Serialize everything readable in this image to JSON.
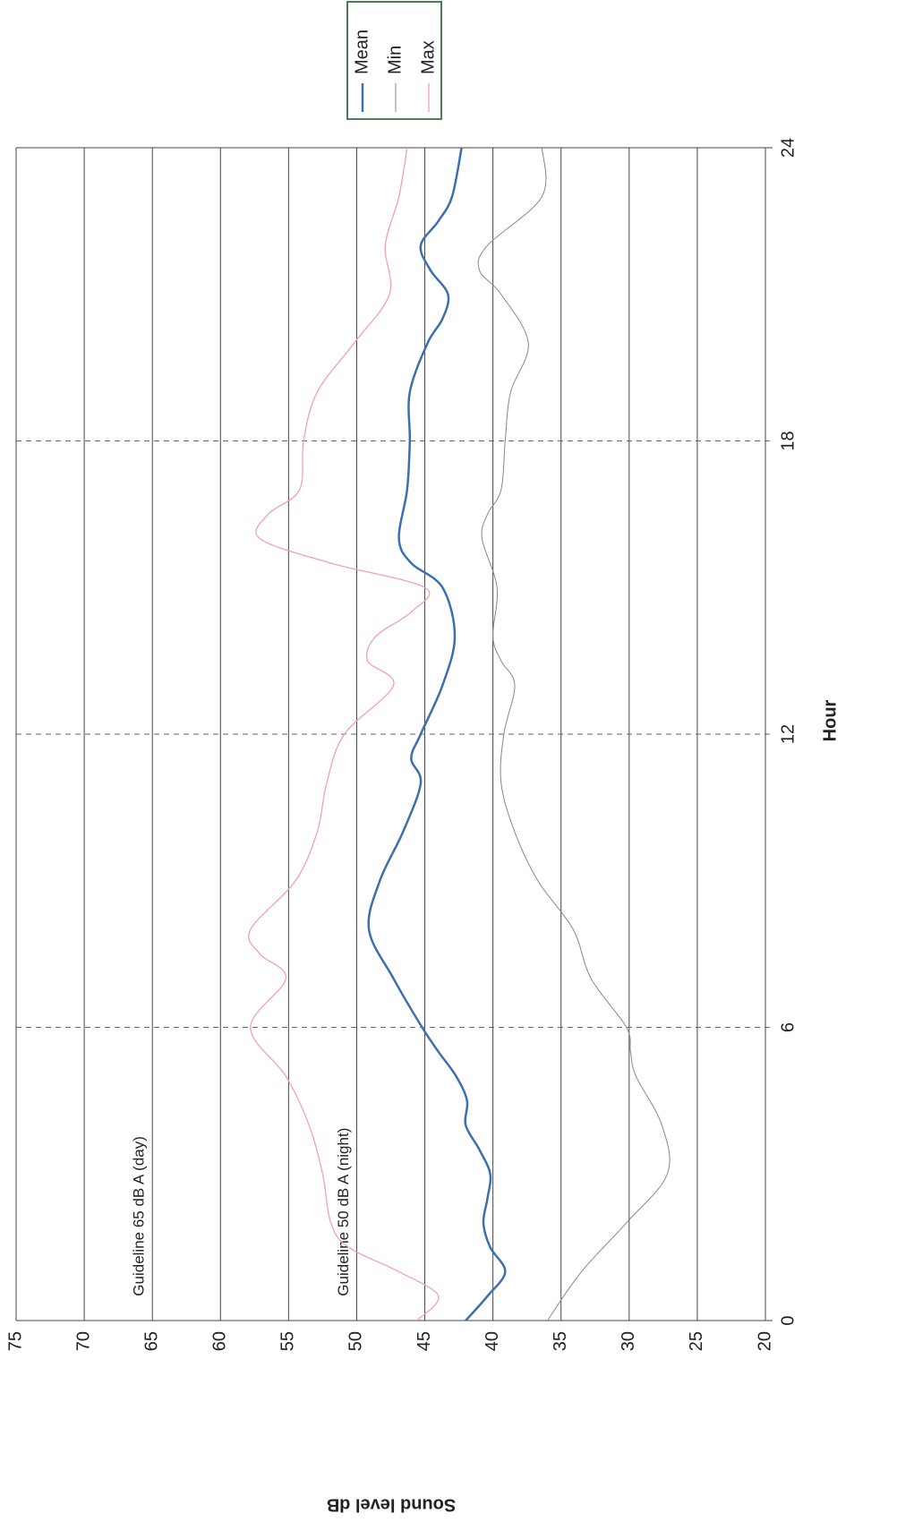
{
  "chart_data": {
    "type": "line",
    "x_label": "Hour",
    "y_label": "Sound level dB",
    "xlim": [
      0,
      24
    ],
    "xticks": [
      0,
      6,
      12,
      18,
      24
    ],
    "ylim": [
      20,
      75
    ],
    "yticks": [
      20,
      25,
      30,
      35,
      40,
      45,
      50,
      55,
      60,
      65,
      70,
      75
    ],
    "grid": true,
    "annotations": [
      {
        "text": "Guideline 65 dB A (day)",
        "x": 0.5,
        "y": 65
      },
      {
        "text": "Guideline 50 dB A (night)",
        "x": 0.5,
        "y": 50
      }
    ],
    "series": [
      {
        "name": "Mean",
        "color": "#3d6fb0",
        "width": 2.5,
        "x": [
          0,
          0.5,
          1,
          1.5,
          2,
          2.5,
          3,
          3.5,
          4,
          4.5,
          5,
          5.5,
          6,
          7,
          8,
          9,
          10,
          11,
          11.5,
          12,
          13,
          14,
          15,
          15.5,
          16,
          17,
          18,
          19,
          20,
          20.5,
          21,
          21.5,
          22,
          22.5,
          23,
          24
        ],
        "values": [
          42,
          40.4,
          39.1,
          40.2,
          40.7,
          40.4,
          40.2,
          41,
          42,
          41.9,
          42.7,
          44,
          45.2,
          47.3,
          49.1,
          48.3,
          46.6,
          45.3,
          46,
          45.3,
          43.7,
          42.8,
          43.7,
          46,
          46.9,
          46.3,
          46.1,
          46.1,
          44.8,
          43.7,
          43.3,
          44.6,
          45.3,
          44,
          43,
          42.3
        ]
      },
      {
        "name": "Min",
        "color": "#888888",
        "width": 1,
        "x": [
          0,
          1,
          2,
          3,
          4,
          5,
          5.5,
          6,
          7,
          8,
          9,
          10,
          11,
          12,
          13,
          13.5,
          14,
          15,
          16,
          16.5,
          17,
          18,
          19,
          20,
          21,
          21.5,
          22,
          23,
          24
        ],
        "values": [
          36,
          33.5,
          30.2,
          27.2,
          27.6,
          29.5,
          29.9,
          30.2,
          32.8,
          34.1,
          36.7,
          38.4,
          39.4,
          39.2,
          38.4,
          39.4,
          40,
          39.7,
          40.8,
          40.4,
          39.4,
          39.1,
          38.7,
          37.4,
          39.4,
          41,
          40.4,
          36.4,
          36.4
        ]
      },
      {
        "name": "Max",
        "color": "#f4a0b0",
        "width": 1.3,
        "x": [
          0,
          0.5,
          1,
          1.5,
          2,
          3,
          4,
          5,
          6,
          7,
          7.5,
          8,
          9,
          10,
          11,
          12,
          13,
          13.5,
          14,
          14.5,
          15,
          15.5,
          16,
          16.5,
          17,
          18,
          19,
          20,
          21,
          22,
          23,
          24
        ],
        "values": [
          45.6,
          44,
          46.9,
          50.6,
          51.9,
          52.5,
          53.5,
          55.2,
          57.8,
          55.2,
          57.1,
          57.8,
          54.5,
          52.9,
          52.2,
          50.9,
          47.3,
          49.2,
          48.6,
          46,
          45,
          51.9,
          57.1,
          56.5,
          54.2,
          53.9,
          52.9,
          50.2,
          47.6,
          47.9,
          46.9,
          46.3
        ]
      }
    ]
  }
}
